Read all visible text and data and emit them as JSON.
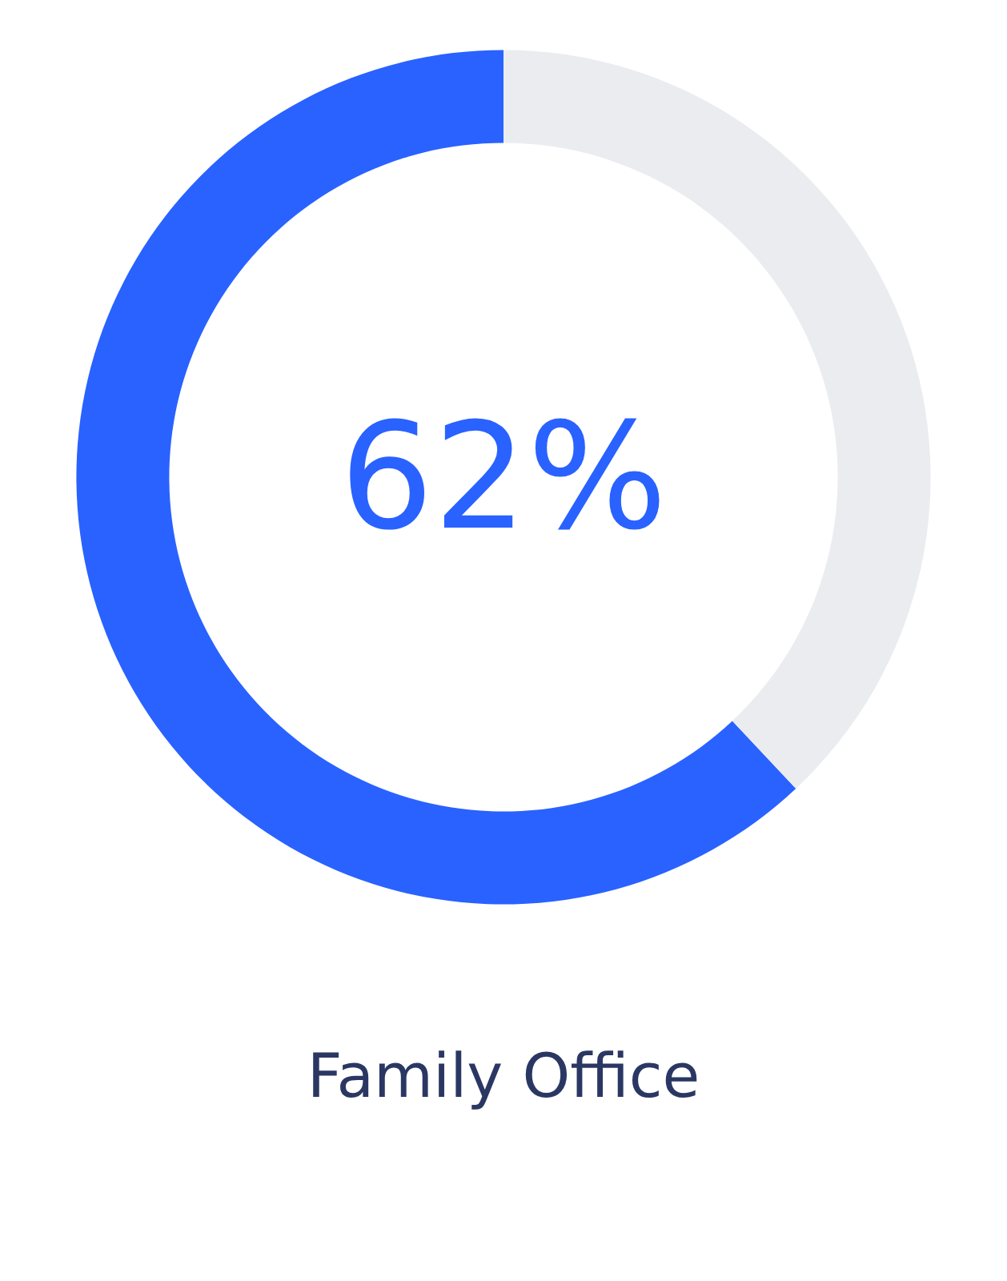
{
  "chart_data": {
    "type": "donut",
    "title": "Family Office",
    "categories": [
      null,
      null
    ],
    "values": [
      62,
      38
    ],
    "colors": [
      "#2962ff",
      "#ebecf0"
    ],
    "value_labels": [
      "62%",
      null
    ]
  }
}
